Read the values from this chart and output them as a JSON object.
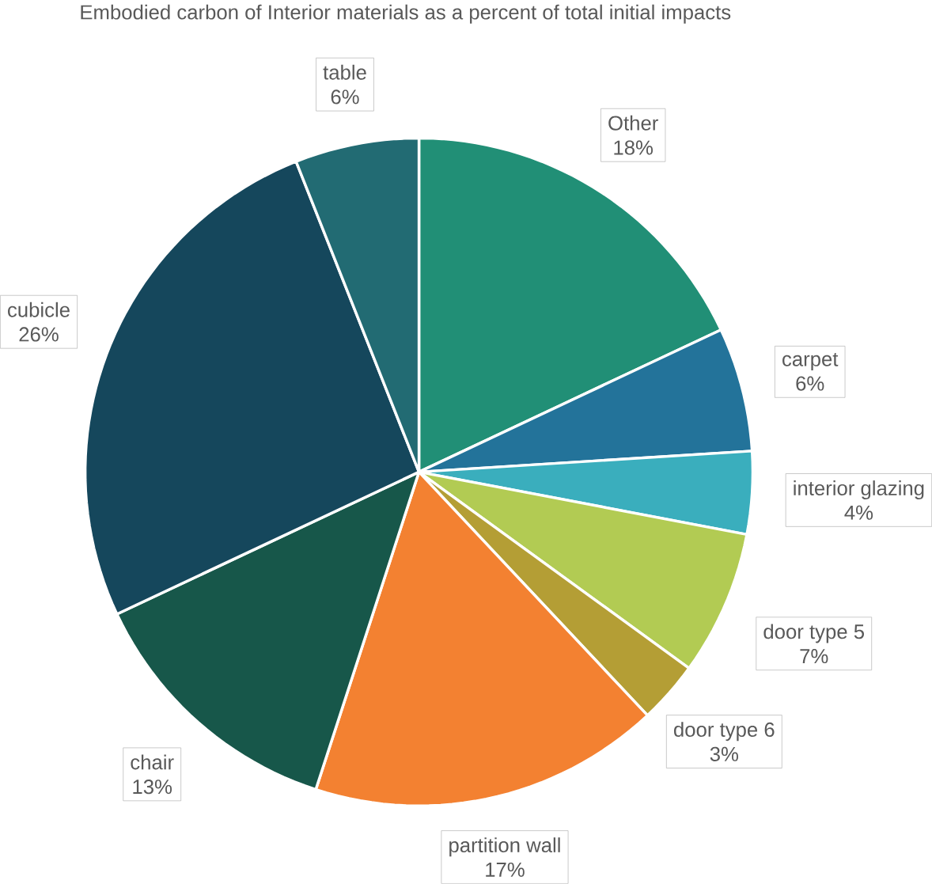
{
  "chart_data": {
    "type": "pie",
    "title": "Embodied carbon of Interior materials as a percent of total initial impacts",
    "categories": [
      "Other",
      "carpet",
      "interior glazing",
      "door type 5",
      "door type 6",
      "partition wall",
      "chair",
      "cubicle",
      "table"
    ],
    "values": [
      18,
      6,
      4,
      7,
      3,
      17,
      13,
      26,
      6
    ],
    "value_labels": [
      "18%",
      "6%",
      "4%",
      "7%",
      "3%",
      "17%",
      "13%",
      "26%",
      "6%"
    ],
    "colors": [
      "#218f76",
      "#23739a",
      "#3aaebd",
      "#b2cb53",
      "#b49e35",
      "#f38131",
      "#17574a",
      "#15475c",
      "#226b73"
    ]
  }
}
